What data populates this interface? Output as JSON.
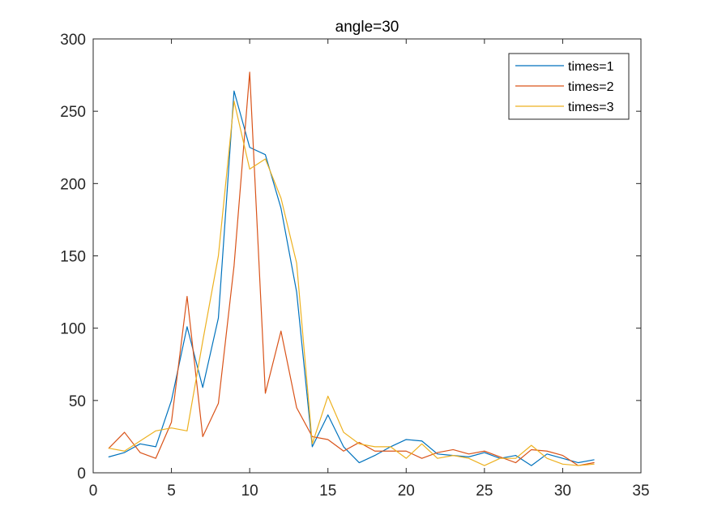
{
  "chart_data": {
    "type": "line",
    "title": "angle=30",
    "xlabel": "",
    "ylabel": "",
    "xlim": [
      0,
      35
    ],
    "ylim": [
      0,
      300
    ],
    "xticks": [
      0,
      5,
      10,
      15,
      20,
      25,
      30,
      35
    ],
    "yticks": [
      0,
      50,
      100,
      150,
      200,
      250,
      300
    ],
    "grid": false,
    "legend_position": "top-right",
    "x": [
      1,
      2,
      3,
      4,
      5,
      6,
      7,
      8,
      9,
      10,
      11,
      12,
      13,
      14,
      15,
      16,
      17,
      18,
      19,
      20,
      21,
      22,
      23,
      24,
      25,
      26,
      27,
      28,
      29,
      30,
      31,
      32
    ],
    "series": [
      {
        "name": "times=1",
        "color": "#0072BD",
        "values": [
          11,
          14,
          20,
          18,
          50,
          101,
          59,
          107,
          264,
          225,
          220,
          183,
          125,
          18,
          40,
          18,
          7,
          12,
          18,
          23,
          22,
          13,
          12,
          11,
          14,
          10,
          12,
          5,
          13,
          10,
          7,
          9
        ]
      },
      {
        "name": "times=2",
        "color": "#D95319",
        "values": [
          17,
          28,
          14,
          10,
          35,
          122,
          25,
          48,
          143,
          277,
          55,
          98,
          45,
          25,
          23,
          15,
          21,
          15,
          15,
          15,
          10,
          14,
          16,
          13,
          15,
          11,
          7,
          16,
          15,
          12,
          5,
          7
        ]
      },
      {
        "name": "times=3",
        "color": "#EDB120",
        "values": [
          17,
          15,
          22,
          29,
          31,
          29,
          91,
          150,
          257,
          210,
          217,
          190,
          145,
          20,
          53,
          28,
          20,
          18,
          18,
          10,
          20,
          10,
          12,
          10,
          5,
          10,
          10,
          19,
          10,
          6,
          5,
          6
        ]
      }
    ]
  }
}
